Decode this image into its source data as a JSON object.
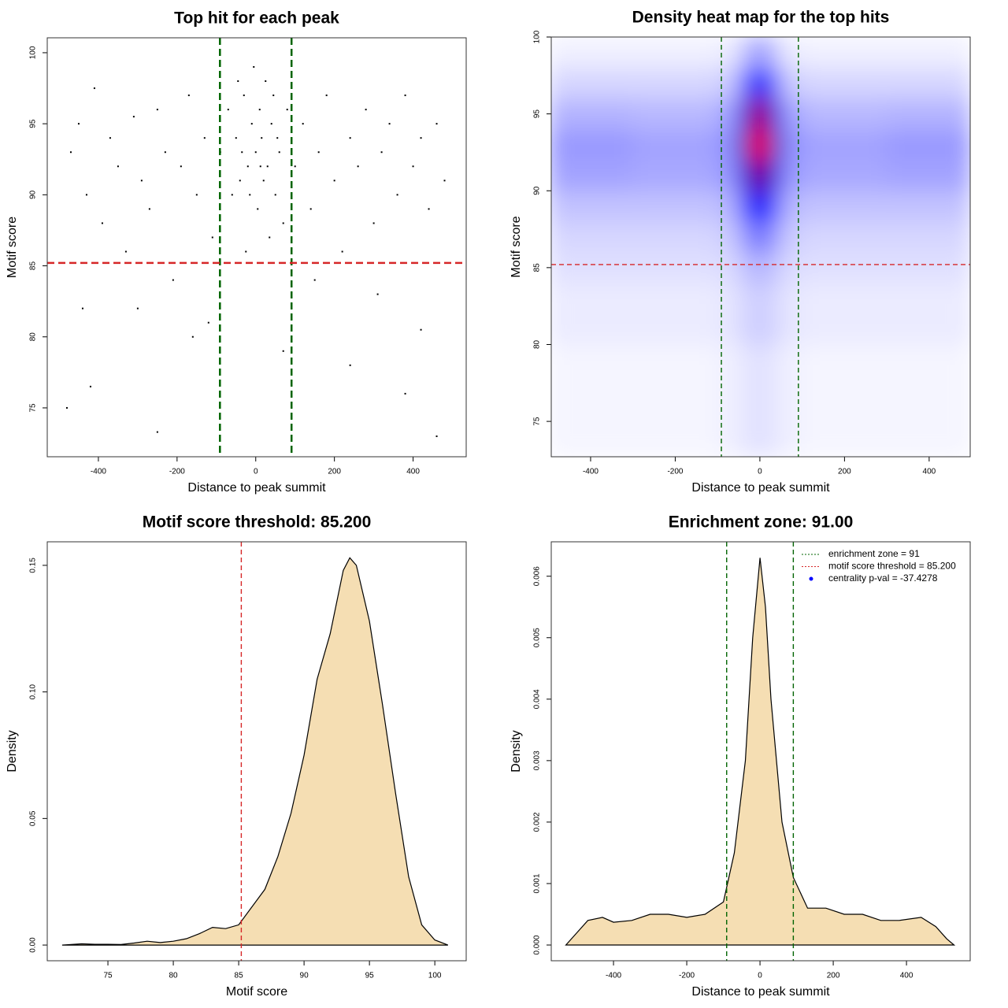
{
  "chart_data": [
    {
      "type": "scatter",
      "title": "Top hit for each peak",
      "xlabel": "Distance to peak summit",
      "ylabel": "Motif score",
      "xlim": [
        -530,
        535
      ],
      "ylim": [
        71.56,
        101.05
      ],
      "xticks": [
        -400,
        -200,
        0,
        200,
        400
      ],
      "yticks": [
        75,
        80,
        85,
        90,
        95,
        100
      ],
      "color": "#000000",
      "x": [
        -470,
        -450,
        -430,
        -410,
        -390,
        -370,
        -350,
        -330,
        -310,
        -290,
        -270,
        -250,
        -230,
        -210,
        -190,
        -170,
        -150,
        -130,
        -110,
        -90,
        -70,
        -60,
        -50,
        -40,
        -30,
        -20,
        -10,
        0,
        5,
        10,
        15,
        20,
        25,
        30,
        40,
        50,
        60,
        70,
        80,
        -25,
        -5,
        35,
        -45,
        55,
        -15,
        12,
        -35,
        45,
        100,
        120,
        140,
        160,
        180,
        200,
        220,
        240,
        260,
        280,
        300,
        320,
        340,
        360,
        380,
        400,
        420,
        440,
        460,
        480,
        -480,
        -420,
        -250,
        -160,
        240,
        310,
        380,
        460,
        -300,
        150,
        -120,
        70,
        420,
        -440
      ],
      "values": [
        93,
        95,
        90,
        97.5,
        88,
        94,
        92,
        86,
        95.5,
        91,
        89,
        96,
        93,
        84,
        92,
        97,
        90,
        94,
        87,
        93,
        96,
        90,
        94,
        91,
        97,
        92,
        95,
        93,
        89,
        96,
        94,
        91,
        98,
        92,
        95,
        90,
        93,
        88,
        96,
        86,
        99,
        87,
        98,
        94,
        90,
        92,
        93,
        97,
        92,
        95,
        89,
        93,
        97,
        91,
        86,
        94,
        92,
        96,
        88,
        93,
        95,
        90,
        97,
        92,
        94,
        89,
        95,
        91,
        75,
        76.5,
        73.3,
        80,
        78,
        83,
        76,
        73,
        82,
        84,
        81,
        79,
        80.5,
        82
      ],
      "vlines": [
        -91,
        91
      ],
      "vline_color": "#006400",
      "hline": 85.2,
      "hline_color": "#d62728"
    },
    {
      "type": "heatmap",
      "title": "Density heat map for the top hits",
      "xlabel": "Distance to peak summit",
      "ylabel": "Motif score",
      "xlim": [
        -493,
        497
      ],
      "ylim": [
        72.7,
        100
      ],
      "xticks": [
        -400,
        -200,
        0,
        200,
        400
      ],
      "yticks": [
        75,
        80,
        85,
        90,
        95,
        100
      ],
      "xbins": [
        -500,
        -300,
        -100,
        -50,
        -20,
        20,
        50,
        100,
        300,
        500
      ],
      "ybins": [
        72.7,
        80,
        84,
        86,
        88,
        90,
        92,
        94,
        96,
        98,
        100
      ],
      "z": [
        [
          0.02,
          0.02,
          0.03,
          0.05,
          0.06,
          0.05,
          0.03,
          0.02,
          0.02
        ],
        [
          0.04,
          0.04,
          0.05,
          0.08,
          0.1,
          0.08,
          0.05,
          0.04,
          0.04
        ],
        [
          0.06,
          0.06,
          0.07,
          0.12,
          0.15,
          0.12,
          0.07,
          0.06,
          0.06
        ],
        [
          0.08,
          0.08,
          0.1,
          0.2,
          0.28,
          0.2,
          0.1,
          0.08,
          0.08
        ],
        [
          0.12,
          0.12,
          0.14,
          0.35,
          0.5,
          0.35,
          0.14,
          0.12,
          0.12
        ],
        [
          0.18,
          0.17,
          0.2,
          0.55,
          0.75,
          0.55,
          0.2,
          0.17,
          0.18
        ],
        [
          0.2,
          0.18,
          0.22,
          0.65,
          1,
          0.65,
          0.22,
          0.18,
          0.2
        ],
        [
          0.15,
          0.14,
          0.18,
          0.55,
          0.85,
          0.55,
          0.18,
          0.14,
          0.15
        ],
        [
          0.08,
          0.08,
          0.1,
          0.3,
          0.45,
          0.3,
          0.1,
          0.08,
          0.08
        ],
        [
          0.03,
          0.03,
          0.04,
          0.12,
          0.2,
          0.12,
          0.04,
          0.03,
          0.03
        ]
      ],
      "colors": [
        "#ffffff",
        "#0000ff",
        "#ff0000"
      ],
      "vlines": [
        -91,
        91
      ],
      "vline_color": "#006400",
      "hline": 85.2,
      "hline_color": "#d62728"
    },
    {
      "type": "density",
      "title": "Motif score threshold: 85.200",
      "xlabel": "Motif score",
      "ylabel": "Density",
      "xlim": [
        70.36,
        102.4
      ],
      "ylim": [
        -0.0062,
        0.1593
      ],
      "xticks": [
        75,
        80,
        85,
        90,
        95,
        100
      ],
      "yticks": [
        {
          "value": 0,
          "label": "0.00"
        },
        0.05,
        {
          "value": 0.1,
          "label": "0.10"
        },
        0.15
      ],
      "color": "#f5deb3",
      "x": [
        71.5,
        73,
        74,
        75,
        76,
        77,
        78,
        79,
        80,
        81,
        82,
        83,
        84,
        85,
        86,
        87,
        88,
        89,
        90,
        91,
        92,
        93,
        93.5,
        94,
        95,
        96,
        97,
        98,
        99,
        100,
        101
      ],
      "values": [
        0,
        0.0005,
        0.0003,
        0.0003,
        0.0002,
        0.0008,
        0.0015,
        0.001,
        0.0015,
        0.0025,
        0.0045,
        0.007,
        0.0065,
        0.008,
        0.015,
        0.022,
        0.035,
        0.052,
        0.075,
        0.105,
        0.123,
        0.148,
        0.153,
        0.15,
        0.128,
        0.095,
        0.06,
        0.027,
        0.008,
        0.002,
        0
      ],
      "vlines": [
        85.2
      ],
      "vline_color": "#d62728"
    },
    {
      "type": "density",
      "title": "Enrichment zone: 91.00",
      "xlabel": "Distance to peak summit",
      "ylabel": "Density",
      "xlim": [
        -570,
        574
      ],
      "ylim": [
        -0.000256,
        0.00656
      ],
      "xticks": [
        -400,
        -200,
        0,
        200,
        400
      ],
      "yticks": [
        {
          "value": 0,
          "label": "0.000"
        },
        0.001,
        0.002,
        0.003,
        0.004,
        0.005,
        0.006
      ],
      "color": "#f5deb3",
      "x": [
        -530,
        -500,
        -470,
        -430,
        -400,
        -350,
        -300,
        -250,
        -200,
        -150,
        -100,
        -70,
        -40,
        -20,
        0,
        15,
        30,
        60,
        91,
        130,
        180,
        230,
        280,
        330,
        380,
        440,
        480,
        510,
        530
      ],
      "values": [
        0,
        0.0002,
        0.0004,
        0.00045,
        0.00037,
        0.0004,
        0.0005,
        0.0005,
        0.00045,
        0.0005,
        0.0007,
        0.0015,
        0.003,
        0.005,
        0.0063,
        0.0055,
        0.004,
        0.002,
        0.0011,
        0.0006,
        0.0006,
        0.0005,
        0.0005,
        0.0004,
        0.0004,
        0.00045,
        0.0003,
        0.0001,
        0
      ],
      "vlines": [
        -91,
        91
      ],
      "vline_color": "#006400",
      "legend": {
        "position": "topright",
        "entries": [
          {
            "label": "enrichment zone = 91",
            "color": "#006400",
            "symbol": "line"
          },
          {
            "label": "motif score threshold = 85.200",
            "color": "#d62728",
            "symbol": "line"
          },
          {
            "label": "centrality p-val = -37.4278",
            "color": "#0000ff",
            "symbol": "point"
          }
        ]
      }
    }
  ]
}
